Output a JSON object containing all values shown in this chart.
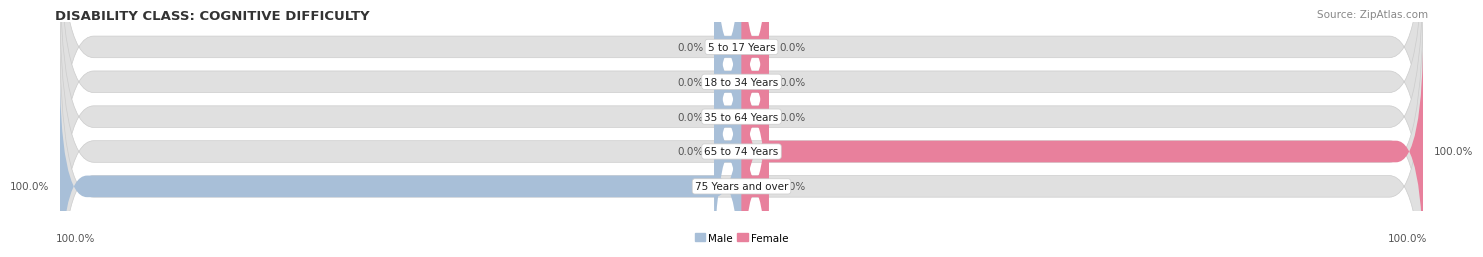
{
  "title": "DISABILITY CLASS: COGNITIVE DIFFICULTY",
  "source": "Source: ZipAtlas.com",
  "categories": [
    "5 to 17 Years",
    "18 to 34 Years",
    "35 to 64 Years",
    "65 to 74 Years",
    "75 Years and over"
  ],
  "male_values": [
    0.0,
    0.0,
    0.0,
    0.0,
    100.0
  ],
  "female_values": [
    0.0,
    0.0,
    0.0,
    100.0,
    0.0
  ],
  "male_color": "#a8bfd8",
  "female_color": "#e8809c",
  "bar_bg_color": "#e0e0e0",
  "bar_bg_light": "#f0f0f0",
  "background_color": "#ffffff",
  "title_fontsize": 9.5,
  "source_fontsize": 7.5,
  "label_fontsize": 7.5,
  "tick_fontsize": 7.5,
  "max_val": 100.0,
  "left_axis_label": "100.0%",
  "right_axis_label": "100.0%"
}
